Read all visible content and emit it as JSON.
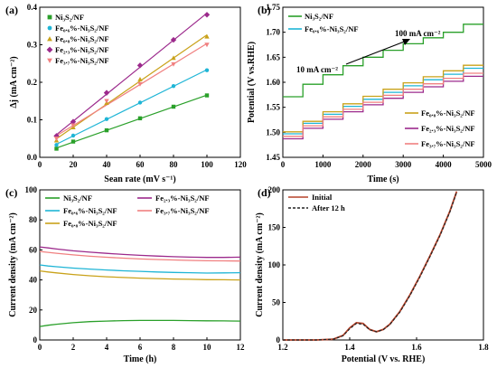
{
  "chart_data": [
    {
      "panel": "(a)",
      "type": "scatter",
      "xlabel": "Sean rate (mV s⁻¹)",
      "ylabel": "Δj (mA cm⁻²)",
      "xlim": [
        0,
        120
      ],
      "ylim": [
        0,
        0.4
      ],
      "xticks": [
        0,
        20,
        40,
        60,
        80,
        100,
        120
      ],
      "yticks": [
        0.0,
        0.1,
        0.2,
        0.3,
        0.4
      ],
      "x": [
        10,
        20,
        40,
        60,
        80,
        100
      ],
      "legend_position": "top-left",
      "series": [
        {
          "name": "Ni₃S₂/NF",
          "color": "#2aa02a",
          "marker": "square",
          "values": [
            0.023,
            0.042,
            0.072,
            0.104,
            0.135,
            0.165
          ]
        },
        {
          "name": "Fe₀.₆%-Ni₃S₂/NF",
          "color": "#1fb5d6",
          "marker": "circle",
          "values": [
            0.033,
            0.058,
            0.102,
            0.146,
            0.19,
            0.232
          ]
        },
        {
          "name": "Fe₀.₈%-Ni₃S₂/NF",
          "color": "#c9a21a",
          "marker": "triangle-up",
          "values": [
            0.045,
            0.08,
            0.145,
            0.208,
            0.265,
            0.322
          ]
        },
        {
          "name": "Fe₂.₃%-Ni₃S₂/NF",
          "color": "#9c2a8c",
          "marker": "diamond",
          "values": [
            0.057,
            0.095,
            0.172,
            0.245,
            0.313,
            0.38
          ]
        },
        {
          "name": "Fe₃.₇%-Ni₃S₂/NF",
          "color": "#f08080",
          "marker": "triangle-down",
          "values": [
            0.05,
            0.085,
            0.15,
            0.195,
            0.248,
            0.3
          ]
        }
      ]
    },
    {
      "panel": "(b)",
      "type": "line",
      "xlabel": "Time (s)",
      "ylabel": "Potential (V vs.RHE)",
      "xlim": [
        0,
        5000
      ],
      "ylim": [
        1.45,
        1.75
      ],
      "xticks": [
        0,
        1000,
        2000,
        3000,
        4000,
        5000
      ],
      "yticks": [
        1.45,
        1.5,
        1.55,
        1.6,
        1.65,
        1.7,
        1.75
      ],
      "step_duration_s": 500,
      "annotations": [
        "10 mA cm⁻²",
        "100 mA cm⁻²"
      ],
      "series": [
        {
          "name": "Ni₃S₂/NF",
          "color": "#2aa02a",
          "values": [
            1.571,
            1.596,
            1.615,
            1.633,
            1.65,
            1.664,
            1.677,
            1.689,
            1.7,
            1.716
          ]
        },
        {
          "name": "Fe₀.₆%-Ni₃S₂/NF",
          "color": "#1fb5d6",
          "values": [
            1.497,
            1.518,
            1.536,
            1.552,
            1.566,
            1.58,
            1.593,
            1.605,
            1.616,
            1.628
          ]
        },
        {
          "name": "Fe₀.₈%-Ni₃S₂/NF",
          "color": "#c9a21a",
          "values": [
            1.501,
            1.522,
            1.541,
            1.557,
            1.572,
            1.586,
            1.599,
            1.611,
            1.623,
            1.634
          ]
        },
        {
          "name": "Fe₂.₃%-Ni₃S₂/NF",
          "color": "#9c2a8c",
          "values": [
            1.487,
            1.508,
            1.526,
            1.541,
            1.555,
            1.568,
            1.58,
            1.591,
            1.602,
            1.612
          ]
        },
        {
          "name": "Fe₃.₇%-Ni₃S₂/NF",
          "color": "#f08080",
          "values": [
            1.492,
            1.513,
            1.531,
            1.546,
            1.56,
            1.574,
            1.586,
            1.597,
            1.608,
            1.618
          ]
        }
      ]
    },
    {
      "panel": "(c)",
      "type": "line",
      "xlabel": "Time (h)",
      "ylabel": "Current density (mA cm⁻²)",
      "xlim": [
        0,
        12
      ],
      "ylim": [
        0,
        100
      ],
      "xticks": [
        0,
        2,
        4,
        6,
        8,
        10,
        12
      ],
      "yticks": [
        0,
        20,
        40,
        60,
        80,
        100
      ],
      "x": [
        0,
        0.5,
        1,
        2,
        3,
        4,
        5,
        6,
        7,
        8,
        9,
        10,
        11,
        12
      ],
      "series": [
        {
          "name": "Ni₃S₂/NF",
          "color": "#2aa02a",
          "values": [
            9,
            9.8,
            10.5,
            11.5,
            12.2,
            12.6,
            12.9,
            13.0,
            13.0,
            13.0,
            12.9,
            12.8,
            12.7,
            12.6
          ]
        },
        {
          "name": "Fe₀.₆%-Ni₃S₂/NF",
          "color": "#1fb5d6",
          "values": [
            50,
            49.3,
            48.8,
            47.9,
            47.2,
            46.6,
            46.1,
            45.7,
            45.3,
            45.0,
            44.8,
            44.6,
            44.7,
            44.8
          ]
        },
        {
          "name": "Fe₀.₈%-Ni₃S₂/NF",
          "color": "#c9a21a",
          "values": [
            46,
            45.3,
            44.7,
            43.6,
            42.8,
            42.1,
            41.6,
            41.2,
            40.9,
            40.6,
            40.4,
            40.2,
            40.1,
            40.0
          ]
        },
        {
          "name": "Fe₂.₃%-Ni₃S₂/NF",
          "color": "#9c2a8c",
          "values": [
            62,
            61.3,
            60.6,
            59.4,
            58.5,
            57.7,
            57.0,
            56.4,
            55.9,
            55.5,
            55.2,
            55.0,
            55.0,
            55.2
          ]
        },
        {
          "name": "Fe₃.₇%-Ni₃S₂/NF",
          "color": "#f08080",
          "values": [
            59,
            58.4,
            57.8,
            56.7,
            55.8,
            55.1,
            54.5,
            54.0,
            53.6,
            53.3,
            53.0,
            52.8,
            52.7,
            52.6
          ]
        }
      ]
    },
    {
      "panel": "(d)",
      "type": "line",
      "xlabel": "Potential (V vs. RHE)",
      "ylabel": "Current density (mA cm⁻²)",
      "xlim": [
        1.2,
        1.8
      ],
      "ylim": [
        0,
        200
      ],
      "xticks": [
        1.2,
        1.4,
        1.6,
        1.8
      ],
      "yticks": [
        0,
        50,
        100,
        150,
        200
      ],
      "x": [
        1.2,
        1.3,
        1.35,
        1.38,
        1.4,
        1.42,
        1.44,
        1.46,
        1.48,
        1.5,
        1.52,
        1.55,
        1.58,
        1.61,
        1.64,
        1.67,
        1.7,
        1.72
      ],
      "legend_position": "top-left",
      "series": [
        {
          "name": "Initial",
          "color": "#b5432a",
          "dash": "solid",
          "values": [
            0,
            0,
            1,
            6,
            16,
            23,
            22,
            14,
            11,
            14,
            21,
            38,
            60,
            85,
            112,
            140,
            172,
            198
          ]
        },
        {
          "name": "After 12 h",
          "color": "#222222",
          "dash": "dashed",
          "values": [
            0,
            0,
            1,
            5.5,
            15,
            22,
            21,
            13.5,
            11,
            13.5,
            20.5,
            37,
            59,
            84,
            111,
            139,
            171,
            197
          ]
        }
      ]
    }
  ]
}
